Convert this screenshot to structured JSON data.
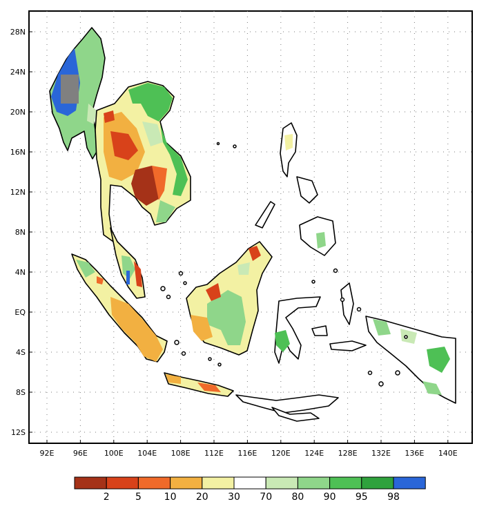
{
  "map": {
    "lat_labels": [
      "28N",
      "24N",
      "20N",
      "16N",
      "12N",
      "8N",
      "4N",
      "EQ",
      "4S",
      "8S",
      "12S"
    ],
    "lon_labels": [
      "92E",
      "96E",
      "100E",
      "104E",
      "108E",
      "112E",
      "116E",
      "120E",
      "124E",
      "128E",
      "132E",
      "136E",
      "140E"
    ],
    "grid": "dotted"
  },
  "legend": {
    "colors": [
      "#a53218",
      "#d8421a",
      "#f06a2a",
      "#f2b041",
      "#f3f1a3",
      "#ffffff",
      "#c9e9b5",
      "#8fd68a",
      "#4ec055",
      "#2fa23d",
      "#2a66d8"
    ],
    "labels": [
      "2",
      "5",
      "10",
      "20",
      "30",
      "70",
      "80",
      "90",
      "95",
      "98"
    ]
  },
  "colors": {
    "no_data": "#808080"
  }
}
